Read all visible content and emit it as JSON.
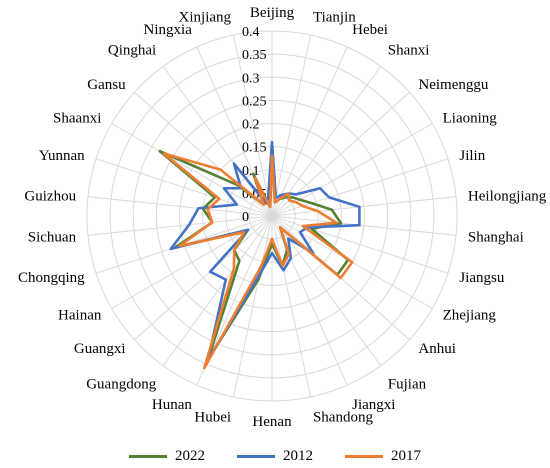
{
  "chart_data": {
    "type": "radar",
    "title": "",
    "categories": [
      "Beijing",
      "Tianjin",
      "Hebei",
      "Shanxi",
      "Neimenggu",
      "Liaoning",
      "Jilin",
      "Heilongjiang",
      "Shanghai",
      "Jiangsu",
      "Zhejiang",
      "Anhui",
      "Fujian",
      "Jiangxi",
      "Shandong",
      "Henan",
      "Hubei",
      "Hunan",
      "Guangdong",
      "Guangxi",
      "Hainan",
      "Chongqing",
      "Sichuan",
      "Guizhou",
      "Yunnan",
      "Shaanxi",
      "Gansu",
      "Qinghai",
      "Ningxia",
      "Xinjiang"
    ],
    "radial_ticks": [
      "0",
      "0.05",
      "0.1",
      "0.15",
      "0.2",
      "0.25",
      "0.3",
      "0.35",
      "0.4"
    ],
    "rlim": [
      0,
      0.4
    ],
    "grid": true,
    "legend_position": "bottom",
    "series": [
      {
        "name": "2022",
        "color": "#548235",
        "values": [
          0.14,
          0.03,
          0.04,
          0.05,
          0.06,
          0.07,
          0.09,
          0.13,
          0.15,
          0.09,
          0.19,
          0.19,
          0.03,
          0.08,
          0.11,
          0.06,
          0.14,
          0.34,
          0.12,
          0.11,
          0.06,
          0.22,
          0.13,
          0.15,
          0.13,
          0.28,
          0.1,
          0.03,
          0.1,
          0.02
        ]
      },
      {
        "name": "2012",
        "color": "#4472c4",
        "values": [
          0.16,
          0.04,
          0.05,
          0.06,
          0.07,
          0.12,
          0.13,
          0.19,
          0.19,
          0.08,
          0.07,
          0.12,
          0.06,
          0.1,
          0.12,
          0.08,
          0.13,
          0.34,
          0.17,
          0.18,
          0.06,
          0.23,
          0.18,
          0.16,
          0.08,
          0.12,
          0.09,
          0.14,
          0.03,
          0.04
        ]
      },
      {
        "name": "2017",
        "color": "#ed7d31",
        "values": [
          0.13,
          0.03,
          0.04,
          0.06,
          0.05,
          0.06,
          0.07,
          0.1,
          0.14,
          0.07,
          0.2,
          0.2,
          0.03,
          0.09,
          0.11,
          0.05,
          0.11,
          0.36,
          0.14,
          0.11,
          0.07,
          0.21,
          0.13,
          0.14,
          0.12,
          0.27,
          0.15,
          0.03,
          0.09,
          0.02
        ]
      }
    ]
  }
}
